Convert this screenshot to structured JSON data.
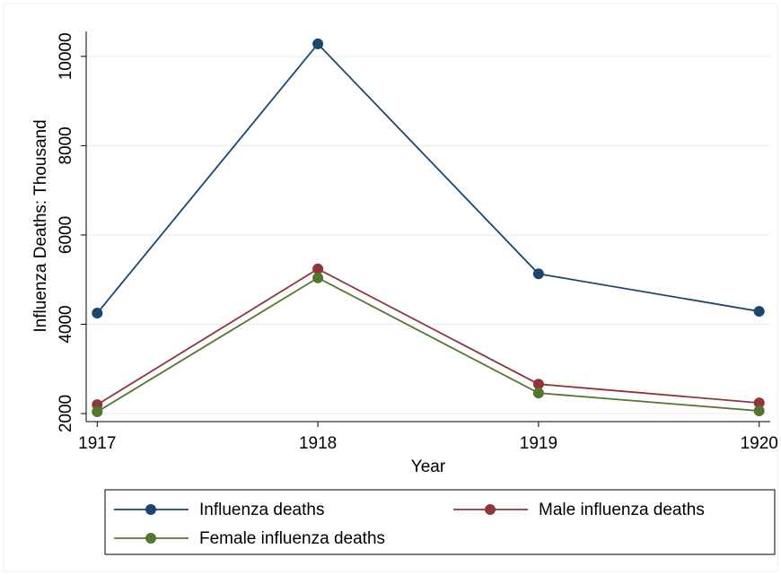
{
  "chart_data": {
    "type": "line",
    "x_label": "Year",
    "y_label": "Influenza Deaths: Thousand",
    "x": [
      1917,
      1918,
      1919,
      1920
    ],
    "series": [
      {
        "name": "Influenza deaths",
        "color": "#1a476f",
        "values": [
          4250,
          10280,
          5130,
          4290
        ]
      },
      {
        "name": "Male influenza deaths",
        "color": "#90353b",
        "values": [
          2200,
          5240,
          2660,
          2240
        ]
      },
      {
        "name": "Female influenza deaths",
        "color": "#55752f",
        "values": [
          2040,
          5040,
          2460,
          2060
        ]
      }
    ],
    "xlim": [
      1916.95,
      1920.05
    ],
    "xticks": [
      1917,
      1918,
      1919,
      1920
    ],
    "ylim": [
      1820,
      10560
    ],
    "yticks": [
      2000,
      4000,
      6000,
      8000,
      10000
    ],
    "grid": true,
    "legend": "bottom"
  }
}
